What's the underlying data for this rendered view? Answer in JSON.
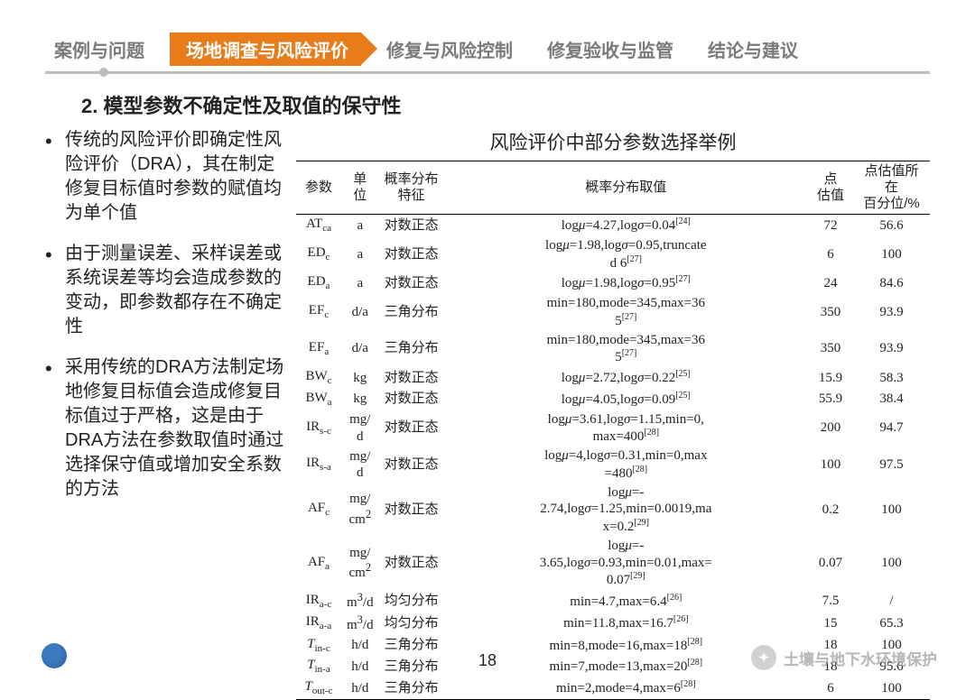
{
  "nav": {
    "items": [
      "案例与问题",
      "场地调查与风险评价",
      "修复与风险控制",
      "修复验收与监管",
      "结论与建议"
    ],
    "active_index": 1,
    "active_bg": "#e87b1a"
  },
  "section_title": "2. 模型参数不确定性及取值的保守性",
  "bullets": [
    "传统的风险评价即确定性风险评价（DRA），其在制定修复目标值时参数的赋值均为单个值",
    "由于测量误差、采样误差或系统误差等均会造成参数的变动，即参数都存在不确定性",
    "采用传统的DRA方法制定场地修复目标值会造成修复目标值过于严格，这是由于DRA方法在参数取值时通过选择保守值或增加安全系数的方法"
  ],
  "table": {
    "title": "风险评价中部分参数选择举例",
    "headers": [
      "参数",
      "单位",
      "概率分布特征",
      "概率分布取值",
      "点估值",
      "点估值所在百分位/%"
    ],
    "rows": [
      {
        "p": "AT<sub>ca</sub>",
        "u": "a",
        "d": "对数正态",
        "v": "log<span class='ital'>μ</span>=4.27,log<span class='ital'>σ</span>=0.04<sup>[24]</sup>",
        "pe": "72",
        "pct": "56.6"
      },
      {
        "p": "ED<sub>c</sub>",
        "u": "a",
        "d": "对数正态",
        "v": "log<span class='ital'>μ</span>=1.98,log<span class='ital'>σ</span>=0.95,truncate<br>d 6<sup>[27]</sup>",
        "pe": "6",
        "pct": "100"
      },
      {
        "p": "ED<sub>a</sub>",
        "u": "a",
        "d": "对数正态",
        "v": "log<span class='ital'>μ</span>=1.98,log<span class='ital'>σ</span>=0.95<sup>[27]</sup>",
        "pe": "24",
        "pct": "84.6"
      },
      {
        "p": "EF<sub>c</sub>",
        "u": "d/a",
        "d": "三角分布",
        "v": "min=180,mode=345,max=36<br>5<sup>[27]</sup>",
        "pe": "350",
        "pct": "93.9"
      },
      {
        "p": "EF<sub>a</sub>",
        "u": "d/a",
        "d": "三角分布",
        "v": "min=180,mode=345,max=36<br>5<sup>[27]</sup>",
        "pe": "350",
        "pct": "93.9"
      },
      {
        "p": "BW<sub>c</sub>",
        "u": "kg",
        "d": "对数正态",
        "v": "log<span class='ital'>μ</span>=2.72,log<span class='ital'>σ</span>=0.22<sup>[25]</sup>",
        "pe": "15.9",
        "pct": "58.3"
      },
      {
        "p": "BW<sub>a</sub>",
        "u": "kg",
        "d": "对数正态",
        "v": "log<span class='ital'>μ</span>=4.05,log<span class='ital'>σ</span>=0.09<sup>[25]</sup>",
        "pe": "55.9",
        "pct": "38.4"
      },
      {
        "p": "IR<sub>s-c</sub>",
        "u": "mg/<br>d",
        "d": "对数正态",
        "v": "log<span class='ital'>μ</span>=3.61,log<span class='ital'>σ</span>=1.15,min=0,<br>max=400<sup>[28]</sup>",
        "pe": "200",
        "pct": "94.7"
      },
      {
        "p": "IR<sub>s-a</sub>",
        "u": "mg/<br>d",
        "d": "对数正态",
        "v": "log<span class='ital'>μ</span>=4,log<span class='ital'>σ</span>=0.31,min=0,max<br>=480<sup>[28]</sup>",
        "pe": "100",
        "pct": "97.5"
      },
      {
        "p": "AF<sub>c</sub>",
        "u": "mg/<br>cm<sup>2</sup>",
        "d": "对数正态",
        "v": "log<span class='ital'>μ</span>=-<br>2.74,log<span class='ital'>σ</span>=1.25,min=0.0019,ma<br>x=0.2<sup>[29]</sup>",
        "pe": "0.2",
        "pct": "100"
      },
      {
        "p": "AF<sub>a</sub>",
        "u": "mg/<br>cm<sup>2</sup>",
        "d": "对数正态",
        "v": "log<span class='ital'>μ</span>=-<br>3.65,log<span class='ital'>σ</span>=0.93,min=0.01,max=<br>0.07<sup>[29]</sup>",
        "pe": "0.07",
        "pct": "100"
      },
      {
        "p": "IR<sub>a-c</sub>",
        "u": "m<sup>3</sup>/d",
        "d": "均匀分布",
        "v": "min=4.7,max=6.4<sup>[26]</sup>",
        "pe": "7.5",
        "pct": "/"
      },
      {
        "p": "IR<sub>a-a</sub>",
        "u": "m<sup>3</sup>/d",
        "d": "均匀分布",
        "v": "min=11.8,max=16.7<sup>[26]</sup>",
        "pe": "15",
        "pct": "65.3"
      },
      {
        "p": "<span class='ital'>T</span><sub>in-c</sub>",
        "u": "h/d",
        "d": "三角分布",
        "v": "min=8,mode=16,max=18<sup>[28]</sup>",
        "pe": "18",
        "pct": "100"
      },
      {
        "p": "<span class='ital'>T</span><sub>in-a</sub>",
        "u": "h/d",
        "d": "三角分布",
        "v": "min=7,mode=13,max=20<sup>[28]</sup>",
        "pe": "18",
        "pct": "95.6"
      },
      {
        "p": "<span class='ital'>T</span><sub>out-c</sub>",
        "u": "h/d",
        "d": "三角分布",
        "v": "min=2,mode=4,max=6<sup>[28]</sup>",
        "pe": "6",
        "pct": "100"
      }
    ]
  },
  "page_number": "18",
  "watermark": "土壤与地下水环境保护"
}
